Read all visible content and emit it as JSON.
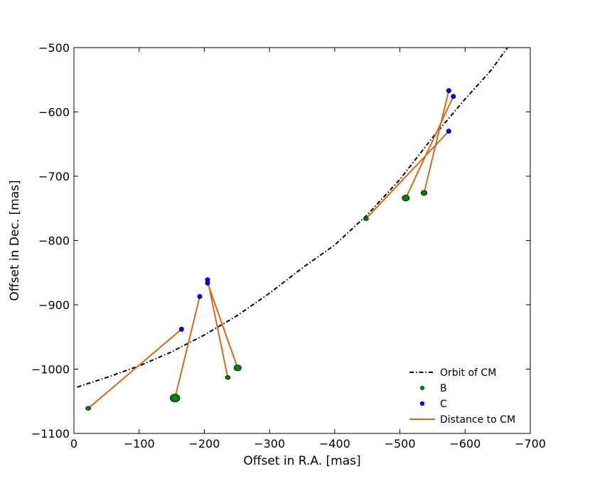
{
  "chart_data": {
    "type": "scatter",
    "title": "",
    "xlabel": "Offset in R.A. [mas]",
    "ylabel": "Offset in Dec. [mas]",
    "xlim": [
      0,
      -700
    ],
    "ylim": [
      -1100,
      -500
    ],
    "x_inverted": true,
    "xticks": [
      0,
      -100,
      -200,
      -300,
      -400,
      -500,
      -600,
      -700
    ],
    "yticks": [
      -500,
      -600,
      -700,
      -800,
      -900,
      -1000,
      -1100
    ],
    "xtick_labels": [
      "0",
      "−100",
      "−200",
      "−300",
      "−400",
      "−500",
      "−600",
      "−700"
    ],
    "ytick_labels": [
      "−500",
      "−600",
      "−700",
      "−800",
      "−900",
      "−1000",
      "−1100"
    ],
    "grid": false,
    "legend_position": "bottom-right",
    "legend": [
      "Orbit of CM",
      "B",
      "C",
      "Distance to CM"
    ],
    "colors": {
      "orbit": "#000000",
      "B": "#008000",
      "C": "#0000ff",
      "distance": "#d2691e"
    },
    "orbit_of_cm": {
      "name": "Orbit of CM",
      "x": [
        -5,
        -50,
        -100,
        -150,
        -200,
        -250,
        -300,
        -350,
        -400,
        -450,
        -500,
        -550,
        -600,
        -640,
        -665
      ],
      "y": [
        -1028,
        -1013,
        -995,
        -973,
        -947,
        -917,
        -882,
        -843,
        -807,
        -760,
        -705,
        -640,
        -580,
        -535,
        -500
      ]
    },
    "series": [
      {
        "name": "B",
        "x": [
          -22,
          -155,
          -236,
          -251,
          -448,
          -509,
          -537
        ],
        "y": [
          -1061,
          -1045,
          -1013,
          -998,
          -766,
          -734,
          -726
        ],
        "marker_sizes": [
          4,
          8,
          4,
          6,
          4,
          6,
          5
        ]
      },
      {
        "name": "C",
        "x": [
          -165,
          -193,
          -205,
          -205,
          -575,
          -582,
          -575
        ],
        "y": [
          -938,
          -887,
          -861,
          -866,
          -630,
          -576,
          -567
        ]
      }
    ],
    "distance_to_cm": {
      "name": "Distance to CM",
      "segments": [
        [
          [
            -22,
            -1061
          ],
          [
            -165,
            -938
          ]
        ],
        [
          [
            -155,
            -1045
          ],
          [
            -193,
            -887
          ]
        ],
        [
          [
            -236,
            -1013
          ],
          [
            -205,
            -861
          ]
        ],
        [
          [
            -251,
            -998
          ],
          [
            -205,
            -866
          ]
        ],
        [
          [
            -448,
            -766
          ],
          [
            -575,
            -630
          ]
        ],
        [
          [
            -509,
            -734
          ],
          [
            -582,
            -576
          ]
        ],
        [
          [
            -537,
            -726
          ],
          [
            -575,
            -567
          ]
        ]
      ]
    }
  }
}
